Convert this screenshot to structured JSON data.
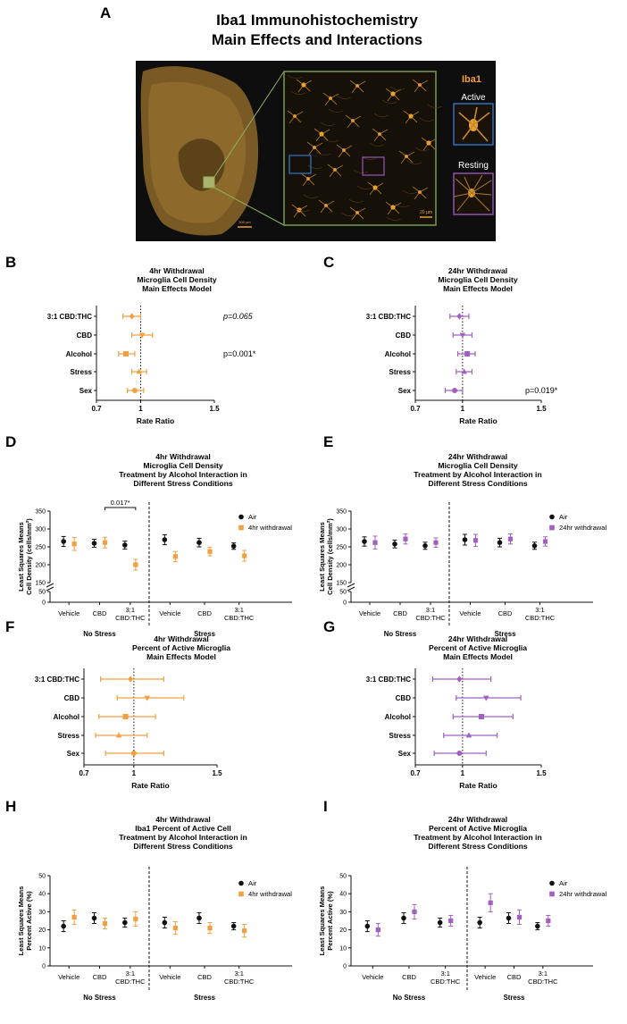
{
  "colors": {
    "air": "#111111",
    "orange": "#f0a040",
    "purple": "#a060c0",
    "micro_bg": "#111111",
    "micro_orange": "#e8a030",
    "green_frame": "#7a9a4a",
    "blue_frame": "#3070c0",
    "purple_frame": "#9050b0"
  },
  "panelA": {
    "letter": "A",
    "title_line1": "Iba1 Immunohistochemistry",
    "title_line2": "Main Effects and Interactions",
    "stain_label": "Iba1",
    "active_label": "Active",
    "resting_label": "Resting",
    "scale_large": "300 µm",
    "scale_small": "20 µm"
  },
  "chart_data": [
    {
      "panel": "B",
      "type": "forest",
      "title": [
        "4hr Withdrawal",
        "Microglia Cell Density",
        "Main Effects Model"
      ],
      "xlabel": "Rate Ratio",
      "xlim": [
        0.7,
        1.5
      ],
      "xticks": [
        "0.7",
        "1",
        "1.5"
      ],
      "reference": 1,
      "color": "orange",
      "rows": [
        {
          "label": "3:1 CBD:THC",
          "est": 0.94,
          "lo": 0.88,
          "hi": 1.0,
          "marker": "diamond",
          "pval": "p=0.065",
          "pval_italic": true
        },
        {
          "label": "CBD",
          "est": 1.01,
          "lo": 0.94,
          "hi": 1.08,
          "marker": "triangle-down",
          "pval": ""
        },
        {
          "label": "Alcohol",
          "est": 0.9,
          "lo": 0.85,
          "hi": 0.96,
          "marker": "square",
          "pval": "p=0.001*",
          "pval_italic": false
        },
        {
          "label": "Stress",
          "est": 0.99,
          "lo": 0.94,
          "hi": 1.04,
          "marker": "triangle-up",
          "pval": ""
        },
        {
          "label": "Sex",
          "est": 0.96,
          "lo": 0.91,
          "hi": 1.02,
          "marker": "circle",
          "pval": ""
        }
      ]
    },
    {
      "panel": "C",
      "type": "forest",
      "title": [
        "24hr Withdrawal",
        "Microglia Cell Density",
        "Main Effects Model"
      ],
      "xlabel": "Rate Ratio",
      "xlim": [
        0.7,
        1.5
      ],
      "xticks": [
        "0.7",
        "1",
        "1.5"
      ],
      "reference": 1,
      "color": "purple",
      "rows": [
        {
          "label": "3:1 CBD:THC",
          "est": 0.98,
          "lo": 0.92,
          "hi": 1.04,
          "marker": "diamond",
          "pval": ""
        },
        {
          "label": "CBD",
          "est": 1.0,
          "lo": 0.94,
          "hi": 1.06,
          "marker": "triangle-down",
          "pval": ""
        },
        {
          "label": "Alcohol",
          "est": 1.03,
          "lo": 0.97,
          "hi": 1.08,
          "marker": "square",
          "pval": ""
        },
        {
          "label": "Stress",
          "est": 1.01,
          "lo": 0.96,
          "hi": 1.06,
          "marker": "triangle-up",
          "pval": ""
        },
        {
          "label": "Sex",
          "est": 0.95,
          "lo": 0.89,
          "hi": 1.0,
          "marker": "circle",
          "pval": "p=0.019*",
          "pval_italic": false
        }
      ]
    },
    {
      "panel": "D",
      "type": "scatter",
      "title": [
        "4hr Withdrawal",
        "Microglia Cell Density",
        "Treatment by Alcohol Interaction in",
        "Different Stress Conditions"
      ],
      "ylabel": [
        "Least Squares Means",
        "Cell Density (cells/mm²)"
      ],
      "ylim": [
        0,
        350
      ],
      "yticks": [
        "0",
        "50",
        "150",
        "200",
        "250",
        "300",
        "350"
      ],
      "groups": [
        "Vehicle",
        "CBD",
        "3:1 CBD:THC",
        "Vehicle",
        "CBD",
        "3:1 CBD:THC"
      ],
      "conditions": [
        "No Stress",
        "Stress"
      ],
      "legend": [
        "Air",
        "4hr withdrawal"
      ],
      "color": "orange",
      "series": [
        {
          "name": "Air",
          "values": [
            265,
            260,
            255,
            270,
            262,
            252
          ],
          "err": [
            14,
            11,
            11,
            14,
            12,
            9
          ]
        },
        {
          "name": "4hr withdrawal",
          "values": [
            258,
            262,
            200,
            223,
            237,
            225
          ],
          "err": [
            18,
            15,
            15,
            14,
            12,
            15
          ]
        }
      ],
      "annotation": "0.017*"
    },
    {
      "panel": "E",
      "type": "scatter",
      "title": [
        "24hr Withdrawal",
        "Microglia Cell Density",
        "Treatment by Alcohol Interaction in",
        "Different Stress Conditions"
      ],
      "ylabel": [
        "Least Squares Means",
        "Cell Density (cells/mm²)"
      ],
      "ylim": [
        0,
        350
      ],
      "yticks": [
        "0",
        "50",
        "150",
        "200",
        "250",
        "300",
        "350"
      ],
      "groups": [
        "Vehicle",
        "CBD",
        "3:1 CBD:THC",
        "Vehicle",
        "CBD",
        "3:1 CBD:THC"
      ],
      "conditions": [
        "No Stress",
        "Stress"
      ],
      "legend": [
        "Air",
        "24hr withdrawal"
      ],
      "color": "purple",
      "series": [
        {
          "name": "Air",
          "values": [
            265,
            258,
            253,
            270,
            262,
            253
          ],
          "err": [
            13,
            11,
            10,
            15,
            12,
            10
          ]
        },
        {
          "name": "24hr withdrawal",
          "values": [
            262,
            272,
            262,
            268,
            272,
            265
          ],
          "err": [
            18,
            14,
            13,
            17,
            14,
            13
          ]
        }
      ],
      "annotation": ""
    },
    {
      "panel": "F",
      "type": "forest",
      "title": [
        "4hr Withdrawal",
        "Percent of Active Microglia",
        "Main Effects Model"
      ],
      "xlabel": "Rate Ratio",
      "xlim": [
        0.7,
        1.5
      ],
      "xticks": [
        "0.7",
        "1",
        "1.5"
      ],
      "reference": 1,
      "color": "orange",
      "rows": [
        {
          "label": "3:1 CBD:THC",
          "est": 0.98,
          "lo": 0.8,
          "hi": 1.18,
          "marker": "diamond",
          "pval": ""
        },
        {
          "label": "CBD",
          "est": 1.08,
          "lo": 0.9,
          "hi": 1.3,
          "marker": "triangle-down",
          "pval": ""
        },
        {
          "label": "Alcohol",
          "est": 0.95,
          "lo": 0.79,
          "hi": 1.13,
          "marker": "square",
          "pval": ""
        },
        {
          "label": "Stress",
          "est": 0.91,
          "lo": 0.77,
          "hi": 1.08,
          "marker": "triangle-up",
          "pval": ""
        },
        {
          "label": "Sex",
          "est": 1.0,
          "lo": 0.83,
          "hi": 1.18,
          "marker": "circle",
          "pval": ""
        }
      ]
    },
    {
      "panel": "G",
      "type": "forest",
      "title": [
        "24hr Withdrawal",
        "Percent of Active Microglia",
        "Main Effects Model"
      ],
      "xlabel": "Rate Ratio",
      "xlim": [
        0.7,
        1.5
      ],
      "xticks": [
        "0.7",
        "1",
        "1.5"
      ],
      "reference": 1,
      "color": "purple",
      "rows": [
        {
          "label": "3:1 CBD:THC",
          "est": 0.98,
          "lo": 0.81,
          "hi": 1.18,
          "marker": "diamond",
          "pval": ""
        },
        {
          "label": "CBD",
          "est": 1.15,
          "lo": 0.96,
          "hi": 1.37,
          "marker": "triangle-down",
          "pval": ""
        },
        {
          "label": "Alcohol",
          "est": 1.12,
          "lo": 0.94,
          "hi": 1.32,
          "marker": "square",
          "pval": ""
        },
        {
          "label": "Stress",
          "est": 1.04,
          "lo": 0.88,
          "hi": 1.22,
          "marker": "triangle-up",
          "pval": ""
        },
        {
          "label": "Sex",
          "est": 0.98,
          "lo": 0.82,
          "hi": 1.15,
          "marker": "circle",
          "pval": ""
        }
      ]
    },
    {
      "panel": "H",
      "type": "scatter",
      "title": [
        "4hr Withdrawal",
        "Iba1 Percent of Active Cell",
        "Treatment by Alcohol Interaction in",
        "Different Stress Conditions"
      ],
      "ylabel": [
        "Least Squares Means",
        "Percent Active (%)"
      ],
      "ylim": [
        0,
        50
      ],
      "yticks": [
        "0",
        "10",
        "20",
        "30",
        "40",
        "50"
      ],
      "groups": [
        "Vehicle",
        "CBD",
        "3:1 CBD:THC",
        "Vehicle",
        "CBD",
        "3:1 CBD:THC"
      ],
      "conditions": [
        "No Stress",
        "Stress"
      ],
      "legend": [
        "Air",
        "4hr withdrawal"
      ],
      "color": "orange",
      "series": [
        {
          "name": "Air",
          "values": [
            22,
            26.5,
            24,
            24,
            26.5,
            22
          ],
          "err": [
            3,
            3,
            2.5,
            3,
            3,
            2
          ]
        },
        {
          "name": "4hr withdrawal",
          "values": [
            27,
            23.5,
            26,
            21,
            21,
            19.5
          ],
          "err": [
            4,
            3,
            4,
            3.5,
            3,
            3.5
          ]
        }
      ],
      "annotation": ""
    },
    {
      "panel": "I",
      "type": "scatter",
      "title": [
        "24hr Withdrawal",
        "Percent of Active Microglia",
        "Treatment by Alcohol Interaction in",
        "Different Stress Conditions"
      ],
      "ylabel": [
        "Least Squares Means",
        "Percent Active (%)"
      ],
      "ylim": [
        0,
        50
      ],
      "yticks": [
        "0",
        "10",
        "20",
        "30",
        "40",
        "50"
      ],
      "groups": [
        "Vehicle",
        "CBD",
        "3:1 CBD:THC",
        "Vehicle",
        "CBD",
        "3:1 CBD:THC"
      ],
      "conditions": [
        "No Stress",
        "Stress"
      ],
      "legend": [
        "Air",
        "24hr withdrawal"
      ],
      "color": "purple",
      "series": [
        {
          "name": "Air",
          "values": [
            22,
            26.5,
            24,
            24,
            26.5,
            22
          ],
          "err": [
            3,
            3,
            2.5,
            3,
            3,
            2
          ]
        },
        {
          "name": "24hr withdrawal",
          "values": [
            20,
            30,
            25,
            35,
            27,
            25
          ],
          "err": [
            3.5,
            4,
            3,
            5,
            4,
            3
          ]
        }
      ],
      "annotation": ""
    }
  ]
}
